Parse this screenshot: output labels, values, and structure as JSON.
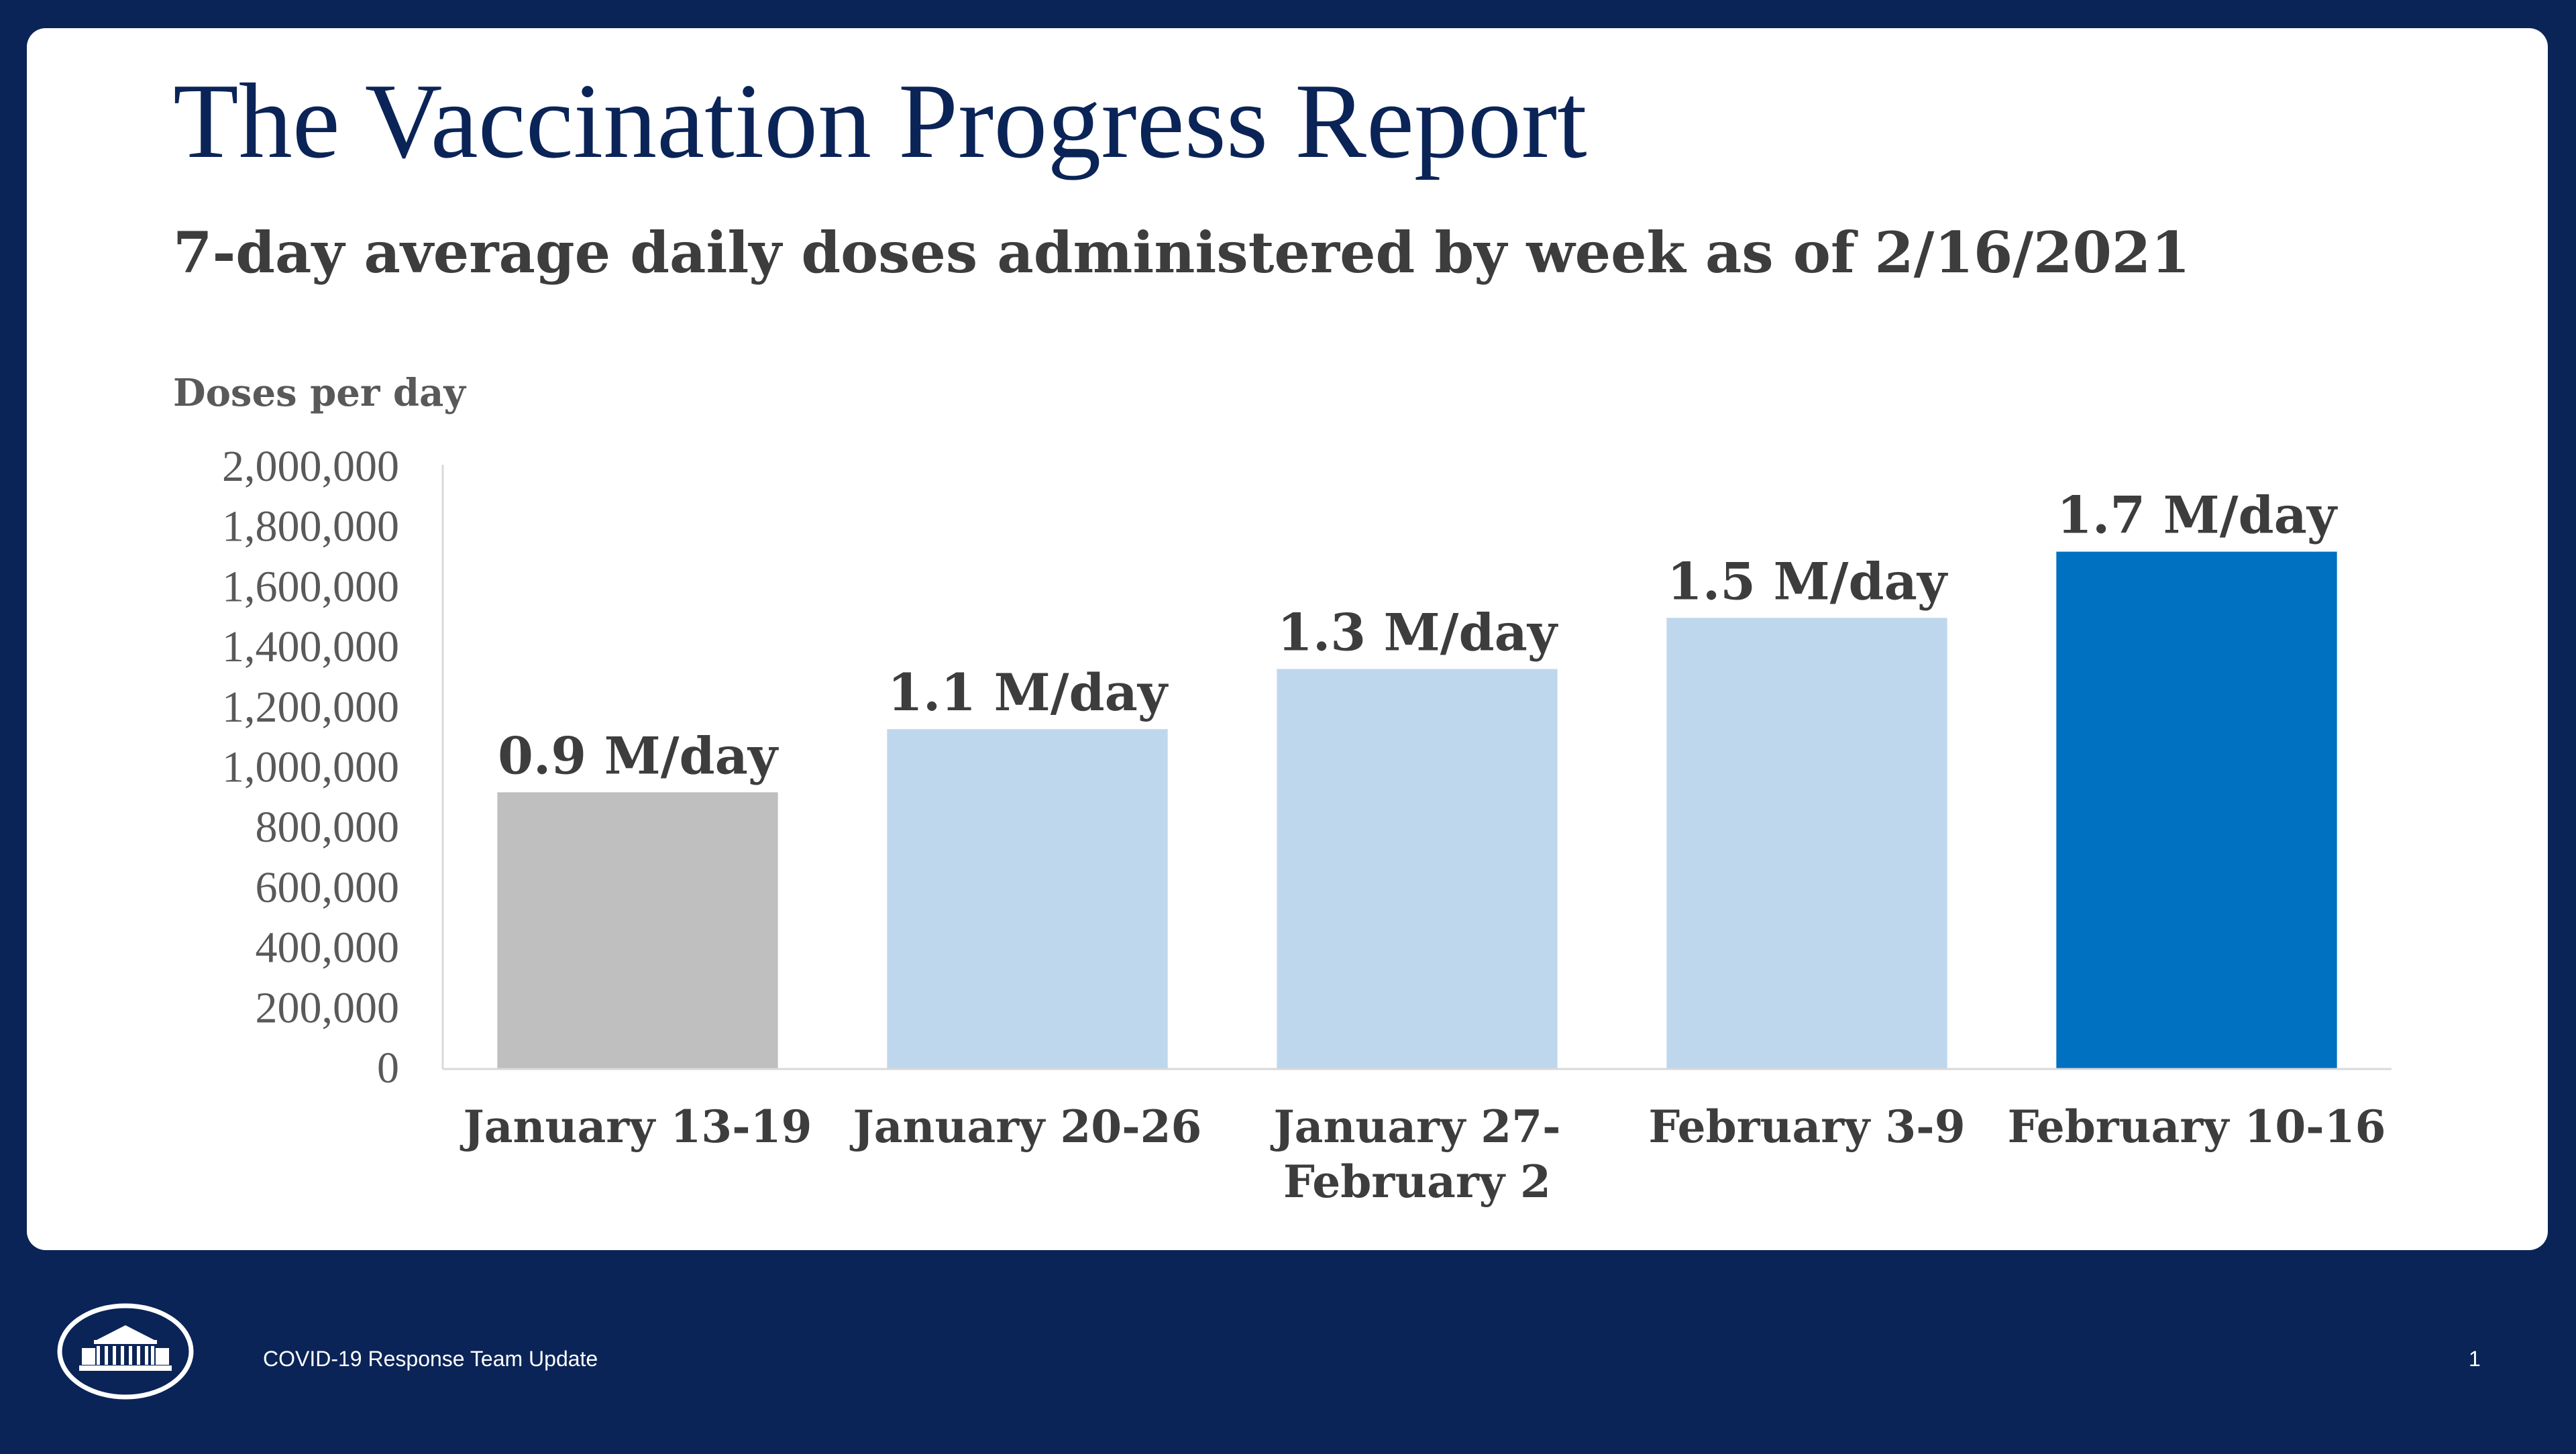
{
  "slide": {
    "title": "The Vaccination Progress Report",
    "footer_text": "COVID-19 Response Team Update",
    "page_number": "1",
    "logo_icon": "white-house-icon"
  },
  "colors": {
    "background": "#0b2457",
    "title": "#0b2457",
    "text": "#3d3d3d",
    "bar_past": "#bed7ed",
    "bar_first": "#bfbfbf",
    "bar_latest": "#0070c0"
  },
  "chart_data": {
    "type": "bar",
    "title": "7-day average daily doses administered by week as of 2/16/2021",
    "ylabel": "Doses per day",
    "xlabel": "",
    "categories": [
      "January 13-19",
      "January 20-26",
      "January 27-February 2",
      "February 3-9",
      "February 10-16"
    ],
    "category_lines": [
      [
        "January 13-19"
      ],
      [
        "January 20-26"
      ],
      [
        "January 27-",
        "February 2"
      ],
      [
        "February 3-9"
      ],
      [
        "February 10-16"
      ]
    ],
    "values": [
      920000,
      1130000,
      1330000,
      1500000,
      1720000
    ],
    "data_labels": [
      "0.9 M/day",
      "1.1 M/day",
      "1.3 M/day",
      "1.5 M/day",
      "1.7 M/day"
    ],
    "bar_colors": [
      "#bfbfbf",
      "#bed7ed",
      "#bed7ed",
      "#bed7ed",
      "#0070c0"
    ],
    "ylim": [
      0,
      2000000
    ],
    "yticks": [
      0,
      200000,
      400000,
      600000,
      800000,
      1000000,
      1200000,
      1400000,
      1600000,
      1800000,
      2000000
    ],
    "ytick_labels": [
      "0",
      "200,000",
      "400,000",
      "600,000",
      "800,000",
      "1,000,000",
      "1,200,000",
      "1,400,000",
      "1,600,000",
      "1,800,000",
      "2,000,000"
    ],
    "grid": false,
    "legend": "none"
  }
}
